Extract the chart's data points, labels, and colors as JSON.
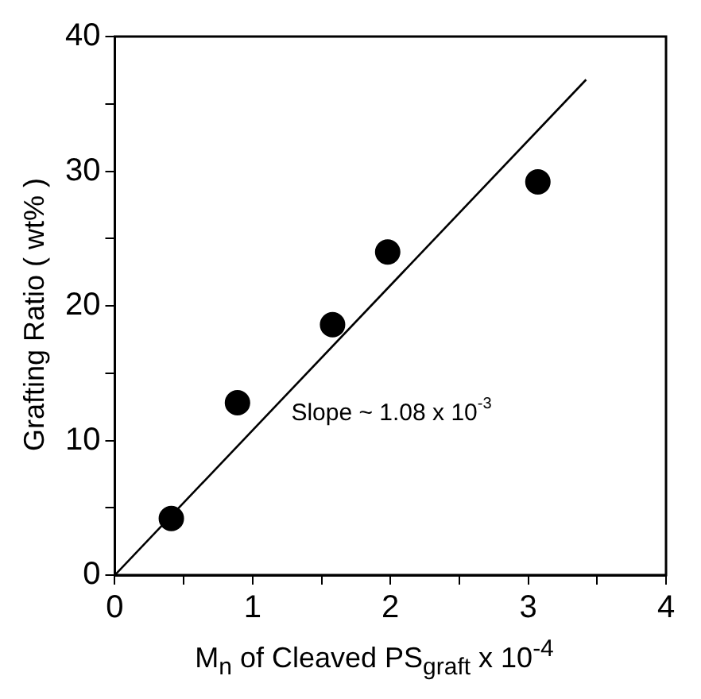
{
  "chart_data": {
    "type": "scatter",
    "xlabel": "M$_{n}$ of Cleaved PS$_{graft}$  x 10$^{-4}$",
    "ylabel": "Grafting Ratio ( wt% )",
    "xlim": [
      0,
      4
    ],
    "ylim": [
      0,
      40
    ],
    "xticks": [
      0,
      {
        "value": 0.5,
        "label": null
      },
      1,
      {
        "value": 1.5,
        "label": null
      },
      2,
      {
        "value": 2.5,
        "label": null
      },
      3,
      {
        "value": 3.5,
        "label": null
      },
      4
    ],
    "yticks": [
      0,
      {
        "value": 5,
        "label": null
      },
      10,
      {
        "value": 15,
        "label": null
      },
      20,
      {
        "value": 25,
        "label": null
      },
      30,
      {
        "value": 35,
        "label": null
      },
      40
    ],
    "grid": false,
    "legend": false,
    "series": [
      {
        "color": "#000000",
        "marker": "circle",
        "x": [
          0.41,
          0.89,
          1.58,
          1.98,
          3.07
        ],
        "values": [
          4.2,
          12.8,
          18.6,
          24.0,
          29.2
        ]
      },
      {
        "type": "line",
        "color": "#000000",
        "marker": "none",
        "x": [
          0,
          3.42
        ],
        "values": [
          0,
          36.8
        ]
      }
    ],
    "annotations": [
      "Slope ~ 1.08 x 10$^{-3}$"
    ]
  }
}
